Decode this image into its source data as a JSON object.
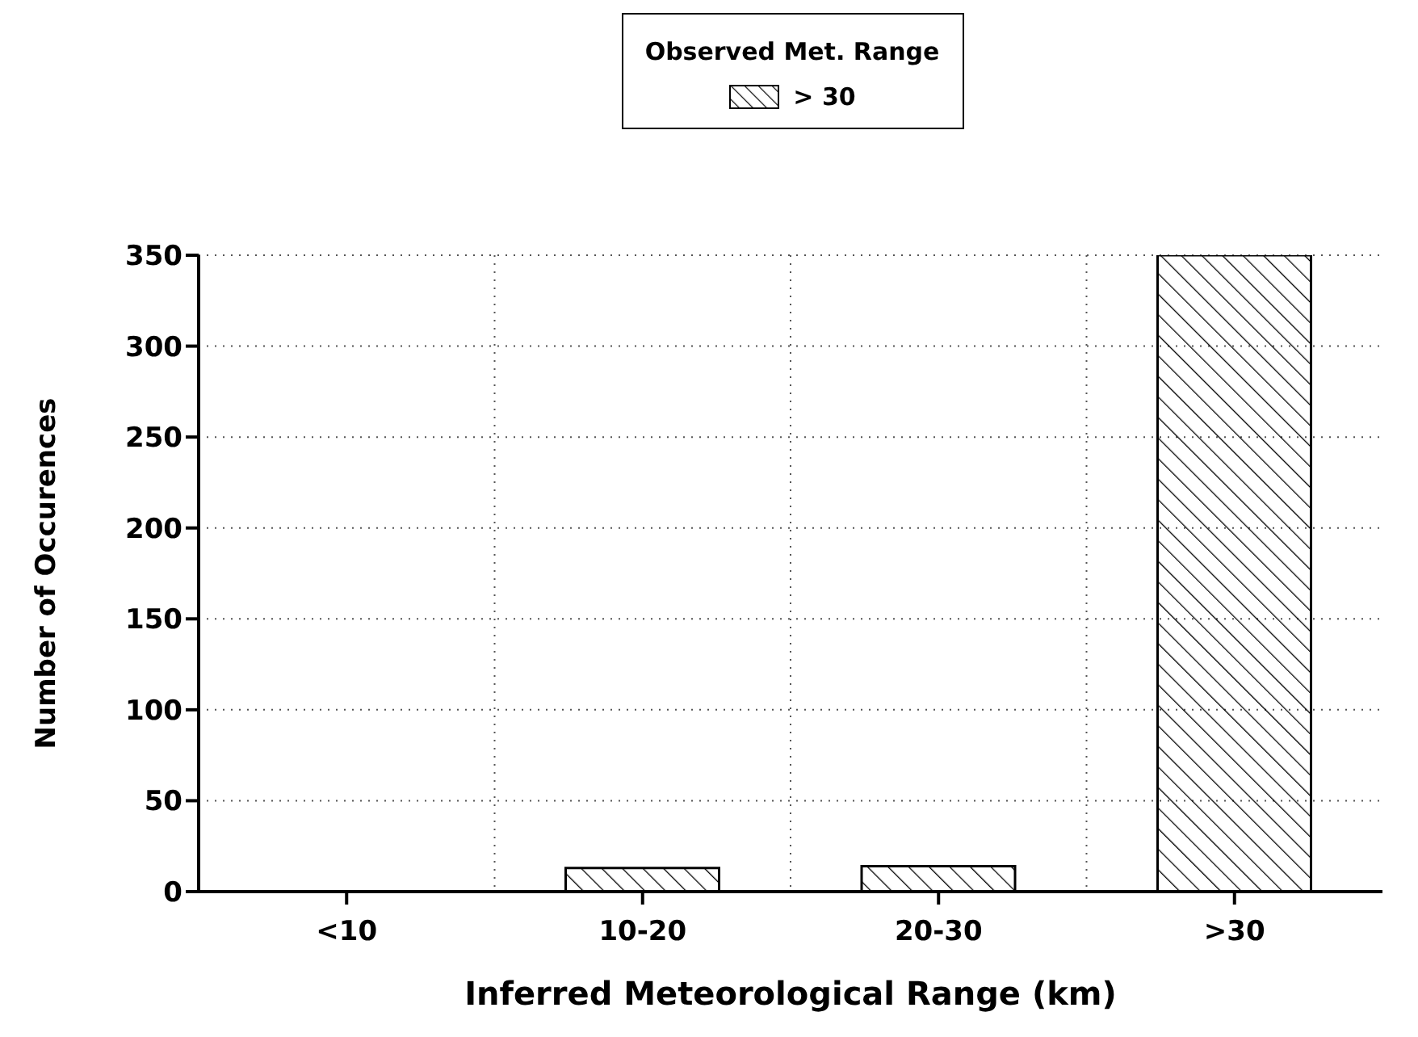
{
  "chart_data": {
    "type": "bar",
    "xlabel": "Inferred Meteorological Range (km)",
    "ylabel": "Number of Occurences",
    "legend_title": "Observed Met. Range",
    "categories": [
      "<10",
      "10-20",
      "20-30",
      ">30"
    ],
    "series": [
      {
        "name": "> 30",
        "color": "#000000",
        "values": [
          0,
          13,
          14,
          350
        ]
      }
    ],
    "ylim": [
      0,
      350
    ],
    "yticks": [
      0,
      50,
      100,
      150,
      200,
      250,
      300,
      350
    ],
    "grid": true,
    "legend": "top"
  }
}
